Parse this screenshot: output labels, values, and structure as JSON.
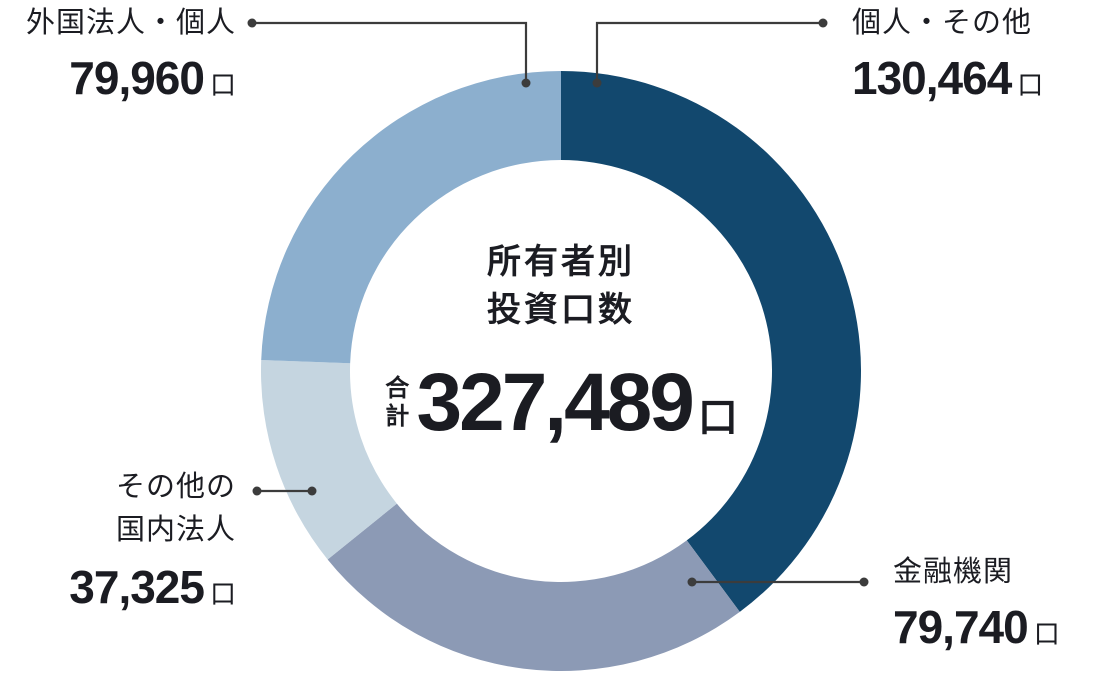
{
  "figure": {
    "background": "#FFFFFF",
    "text_color": "#1B1C22",
    "leader_line_color": "#3C3C3C"
  },
  "chart_data": {
    "type": "pie",
    "subtype": "donut",
    "title": "所有者別投資口数",
    "center_title_lines": [
      "所有者別",
      "投資口数"
    ],
    "total_label": "合計",
    "total_value": 327489,
    "total_value_text": "327,489",
    "unit": "口",
    "direction": "clockwise",
    "start_angle_deg": 0,
    "legend_position": "callout-labels",
    "segments": [
      {
        "key": "individuals-other",
        "name": "個人・その他",
        "value": 130464,
        "value_text": "130,464",
        "color": "#12486E"
      },
      {
        "key": "financial-institutions",
        "name": "金融機関",
        "value": 79740,
        "value_text": "79,740",
        "color": "#8C9AB5"
      },
      {
        "key": "other-domestic-corporations",
        "name": "その他の国内法人",
        "value": 37325,
        "value_text": "37,325",
        "color": "#C5D5E0"
      },
      {
        "key": "foreign-corporations-individuals",
        "name": "外国法人・個人",
        "value": 79960,
        "value_text": "79,960",
        "color": "#8CAFCE"
      }
    ]
  },
  "callouts": {
    "top_left": {
      "name": "外国法人・個人",
      "value": "79,960",
      "unit": "口"
    },
    "top_right": {
      "name": "個人・その他",
      "value": "130,464",
      "unit": "口"
    },
    "bottom_left": {
      "name_line1": "その他の",
      "name_line2": "国内法人",
      "value": "37,325",
      "unit": "口"
    },
    "bottom_right": {
      "name": "金融機関",
      "value": "79,740",
      "unit": "口"
    }
  }
}
